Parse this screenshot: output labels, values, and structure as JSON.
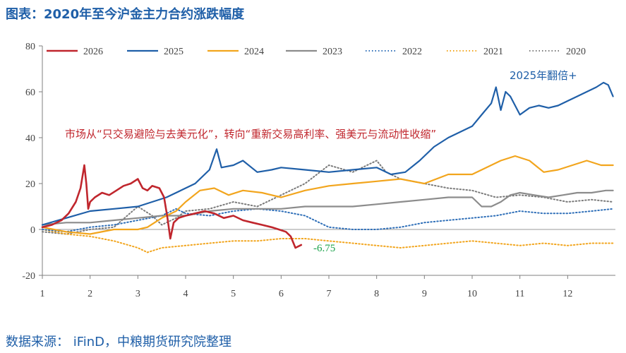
{
  "title": "图表：2020年至今沪金主力合约涨跌幅度",
  "source": "数据来源： iFinD，中粮期货研究院整理",
  "chart_data": {
    "type": "line",
    "xlim": [
      1,
      13
    ],
    "ylim": [
      -20,
      80
    ],
    "x_ticks": [
      1,
      2,
      3,
      4,
      5,
      6,
      7,
      8,
      9,
      10,
      11,
      12
    ],
    "y_ticks": [
      -20,
      0,
      20,
      40,
      60,
      80
    ],
    "legend_position": "top",
    "annotations": {
      "center": "市场从“只交易避险与去美元化”，转向“重新交易高利率、强美元与流动性收缩”",
      "top_right": "2025年翻倍+",
      "end_value": "-6.75"
    },
    "series": [
      {
        "name": "2026",
        "color": "#c0262d",
        "style": "solid",
        "width": 2.6,
        "x": [
          1,
          1.2,
          1.4,
          1.55,
          1.7,
          1.8,
          1.88,
          1.92,
          1.96,
          2.0,
          2.1,
          2.25,
          2.4,
          2.55,
          2.7,
          2.85,
          3.0,
          3.1,
          3.2,
          3.3,
          3.45,
          3.55,
          3.62,
          3.68,
          3.75,
          3.85,
          4.0,
          4.2,
          4.4,
          4.6,
          4.8,
          5.0,
          5.2,
          5.4,
          5.6,
          5.8,
          5.95,
          6.1,
          6.2,
          6.3,
          6.42
        ],
        "y": [
          1,
          2,
          4,
          7,
          12,
          18,
          28,
          20,
          9,
          12,
          14,
          16,
          15,
          17,
          19,
          20,
          22,
          18,
          17,
          19,
          18,
          14,
          5,
          -4,
          3,
          5,
          6,
          7,
          8,
          7,
          5,
          6,
          4,
          3,
          2,
          1,
          0,
          -1,
          -3,
          -8,
          -6.75
        ]
      },
      {
        "name": "2025",
        "color": "#1f5fa8",
        "style": "solid",
        "width": 2.2,
        "x": [
          1,
          1.5,
          2,
          2.5,
          3,
          3.3,
          3.6,
          3.9,
          4.2,
          4.5,
          4.65,
          4.75,
          5.0,
          5.2,
          5.5,
          5.8,
          6.0,
          6.5,
          7.0,
          7.5,
          8.0,
          8.3,
          8.6,
          8.9,
          9.2,
          9.5,
          9.8,
          10.0,
          10.2,
          10.4,
          10.5,
          10.6,
          10.7,
          10.8,
          11.0,
          11.2,
          11.4,
          11.6,
          11.8,
          12.0,
          12.2,
          12.4,
          12.6,
          12.75,
          12.85,
          12.95
        ],
        "y": [
          2,
          5,
          8,
          9,
          10,
          12,
          14,
          17,
          20,
          26,
          35,
          27,
          28,
          30,
          25,
          26,
          27,
          26,
          25,
          26,
          27,
          24,
          25,
          30,
          36,
          40,
          43,
          45,
          50,
          55,
          62,
          52,
          60,
          58,
          50,
          53,
          54,
          53,
          54,
          56,
          58,
          60,
          62,
          64,
          63,
          58
        ]
      },
      {
        "name": "2024",
        "color": "#f2a51d",
        "style": "solid",
        "width": 2.2,
        "x": [
          1,
          1.5,
          2,
          2.5,
          3,
          3.2,
          3.5,
          3.8,
          4.0,
          4.3,
          4.6,
          4.9,
          5.2,
          5.6,
          6.0,
          6.5,
          7.0,
          7.5,
          8.0,
          8.5,
          9.0,
          9.5,
          10.0,
          10.3,
          10.6,
          10.9,
          11.2,
          11.5,
          11.8,
          12.1,
          12.4,
          12.7,
          12.95
        ],
        "y": [
          1,
          -1,
          -2,
          0,
          0,
          1,
          5,
          8,
          12,
          17,
          18,
          15,
          17,
          16,
          14,
          17,
          19,
          20,
          21,
          22,
          20,
          24,
          24,
          27,
          30,
          32,
          30,
          25,
          26,
          28,
          30,
          28,
          28
        ]
      },
      {
        "name": "2023",
        "color": "#8c8c8c",
        "style": "solid",
        "width": 2.2,
        "x": [
          1,
          1.5,
          2,
          2.5,
          3,
          3.5,
          4,
          4.5,
          5,
          5.5,
          6,
          6.5,
          7,
          7.5,
          8,
          8.5,
          9,
          9.5,
          10,
          10.2,
          10.4,
          10.6,
          10.8,
          11,
          11.3,
          11.6,
          11.9,
          12.2,
          12.5,
          12.8,
          12.95
        ],
        "y": [
          2,
          3,
          3,
          4,
          5,
          6,
          6,
          8,
          9,
          9,
          9,
          10,
          10,
          10,
          11,
          12,
          13,
          14,
          14,
          10,
          10,
          12,
          15,
          16,
          15,
          14,
          15,
          16,
          16,
          17,
          17
        ]
      },
      {
        "name": "2022",
        "color": "#2f6fb8",
        "style": "dotted",
        "width": 2.0,
        "x": [
          1,
          1.5,
          2,
          2.5,
          3,
          3.5,
          3.8,
          4,
          4.5,
          5,
          5.5,
          6,
          6.5,
          7,
          7.5,
          8,
          8.5,
          9,
          9.5,
          10,
          10.5,
          11,
          11.5,
          12,
          12.5,
          12.95
        ],
        "y": [
          0,
          -1,
          1,
          2,
          4,
          6,
          9,
          7,
          6,
          8,
          9,
          8,
          6,
          1,
          0,
          0,
          1,
          3,
          4,
          5,
          6,
          8,
          7,
          7,
          8,
          9
        ]
      },
      {
        "name": "2021",
        "color": "#f2a51d",
        "style": "dotted",
        "width": 2.0,
        "x": [
          1,
          1.5,
          2,
          2.5,
          3,
          3.2,
          3.5,
          4,
          4.5,
          5,
          5.5,
          6,
          6.5,
          7,
          7.5,
          8,
          8.5,
          9,
          9.5,
          10,
          10.5,
          11,
          11.5,
          12,
          12.5,
          12.95
        ],
        "y": [
          0,
          -2,
          -3,
          -5,
          -8,
          -10,
          -8,
          -7,
          -6,
          -5,
          -5,
          -4,
          -4,
          -5,
          -6,
          -7,
          -8,
          -7,
          -6,
          -5,
          -6,
          -7,
          -6,
          -7,
          -6,
          -6
        ]
      },
      {
        "name": "2020",
        "color": "#7a7a7a",
        "style": "dotted",
        "width": 2.0,
        "x": [
          1,
          1.5,
          2,
          2.5,
          3,
          3.3,
          3.5,
          3.8,
          4,
          4.5,
          5,
          5.5,
          6,
          6.5,
          7,
          7.5,
          7.8,
          8,
          8.2,
          8.5,
          9,
          9.5,
          10,
          10.5,
          11,
          11.5,
          12,
          12.5,
          12.95
        ],
        "y": [
          -1,
          -2,
          0,
          1,
          10,
          6,
          2,
          5,
          8,
          9,
          12,
          10,
          15,
          20,
          28,
          25,
          28,
          30,
          25,
          22,
          20,
          18,
          17,
          14,
          15,
          14,
          12,
          13,
          12
        ]
      }
    ]
  }
}
